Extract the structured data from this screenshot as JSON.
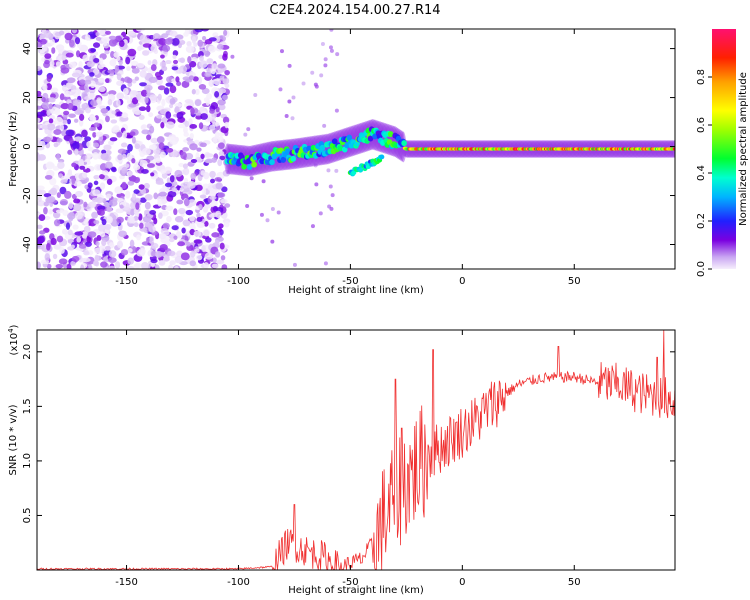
{
  "title": "C2E4.2024.154.00.27.R14",
  "colors": {
    "snr_line": "#f03030",
    "spec_low": "#e6d2f8",
    "spec_mid": "#7a00e0",
    "background": "#ffffff"
  },
  "chart_data": [
    {
      "type": "heatmap",
      "name": "spectrogram",
      "xlabel": "Height of straight line (km)",
      "ylabel": "Frequency (Hz)",
      "xlim": [
        -190,
        95
      ],
      "ylim": [
        -50,
        48
      ],
      "xticks": [
        -150,
        -100,
        -50,
        0,
        50
      ],
      "yticks": [
        -40,
        -20,
        0,
        20,
        40
      ],
      "colorbar": {
        "label": "Normalized spectral amplitude",
        "range": [
          0,
          1
        ],
        "ticks": [
          0.0,
          0.2,
          0.4,
          0.6,
          0.8
        ],
        "colormap": "rainbow"
      },
      "features": {
        "noise_region_x": [
          -190,
          -105
        ],
        "echo_track": [
          {
            "x": -105,
            "y": -5
          },
          {
            "x": -95,
            "y": -6
          },
          {
            "x": -85,
            "y": -4
          },
          {
            "x": -75,
            "y": -3
          },
          {
            "x": -60,
            "y": -1
          },
          {
            "x": -50,
            "y": 2
          },
          {
            "x": -40,
            "y": 5
          },
          {
            "x": -30,
            "y": 2
          },
          {
            "x": -25,
            "y": -1
          },
          {
            "x": 0,
            "y": -1
          },
          {
            "x": 50,
            "y": -1
          },
          {
            "x": 95,
            "y": -1
          }
        ]
      }
    },
    {
      "type": "line",
      "name": "snr",
      "xlabel": "Height of straight line (km)",
      "ylabel": "SNR (10 * v/v)",
      "y_multiplier": "(x10",
      "y_multiplier_exp": "4",
      "y_multiplier_close": ")",
      "xlim": [
        -190,
        95
      ],
      "ylim": [
        0,
        2.2
      ],
      "xticks": [
        -150,
        -100,
        -50,
        0,
        50
      ],
      "yticks": [
        0.5,
        1.0,
        1.5,
        2.0
      ],
      "ytick_labels": [
        "0.5",
        "1.0",
        "1.5",
        "2.0"
      ],
      "envelope": [
        {
          "x": -190,
          "y": 0.01
        },
        {
          "x": -100,
          "y": 0.01
        },
        {
          "x": -85,
          "y": 0.03
        },
        {
          "x": -78,
          "y": 0.25
        },
        {
          "x": -70,
          "y": 0.18
        },
        {
          "x": -62,
          "y": 0.12
        },
        {
          "x": -55,
          "y": 0.02
        },
        {
          "x": -45,
          "y": 0.1
        },
        {
          "x": -38,
          "y": 0.3
        },
        {
          "x": -30,
          "y": 0.7
        },
        {
          "x": -22,
          "y": 0.9
        },
        {
          "x": -15,
          "y": 1.05
        },
        {
          "x": -5,
          "y": 1.2
        },
        {
          "x": 5,
          "y": 1.35
        },
        {
          "x": 15,
          "y": 1.55
        },
        {
          "x": 25,
          "y": 1.7
        },
        {
          "x": 35,
          "y": 1.76
        },
        {
          "x": 50,
          "y": 1.77
        },
        {
          "x": 60,
          "y": 1.72
        },
        {
          "x": 70,
          "y": 1.7
        },
        {
          "x": 80,
          "y": 1.62
        },
        {
          "x": 90,
          "y": 1.58
        },
        {
          "x": 95,
          "y": 1.55
        }
      ],
      "peaks": [
        {
          "x": -75,
          "y": 0.6
        },
        {
          "x": -30,
          "y": 1.75
        },
        {
          "x": -27,
          "y": 1.3
        },
        {
          "x": -13,
          "y": 2.02
        },
        {
          "x": 43,
          "y": 2.05
        },
        {
          "x": 87,
          "y": 1.95
        },
        {
          "x": 90,
          "y": 2.2
        }
      ]
    }
  ]
}
